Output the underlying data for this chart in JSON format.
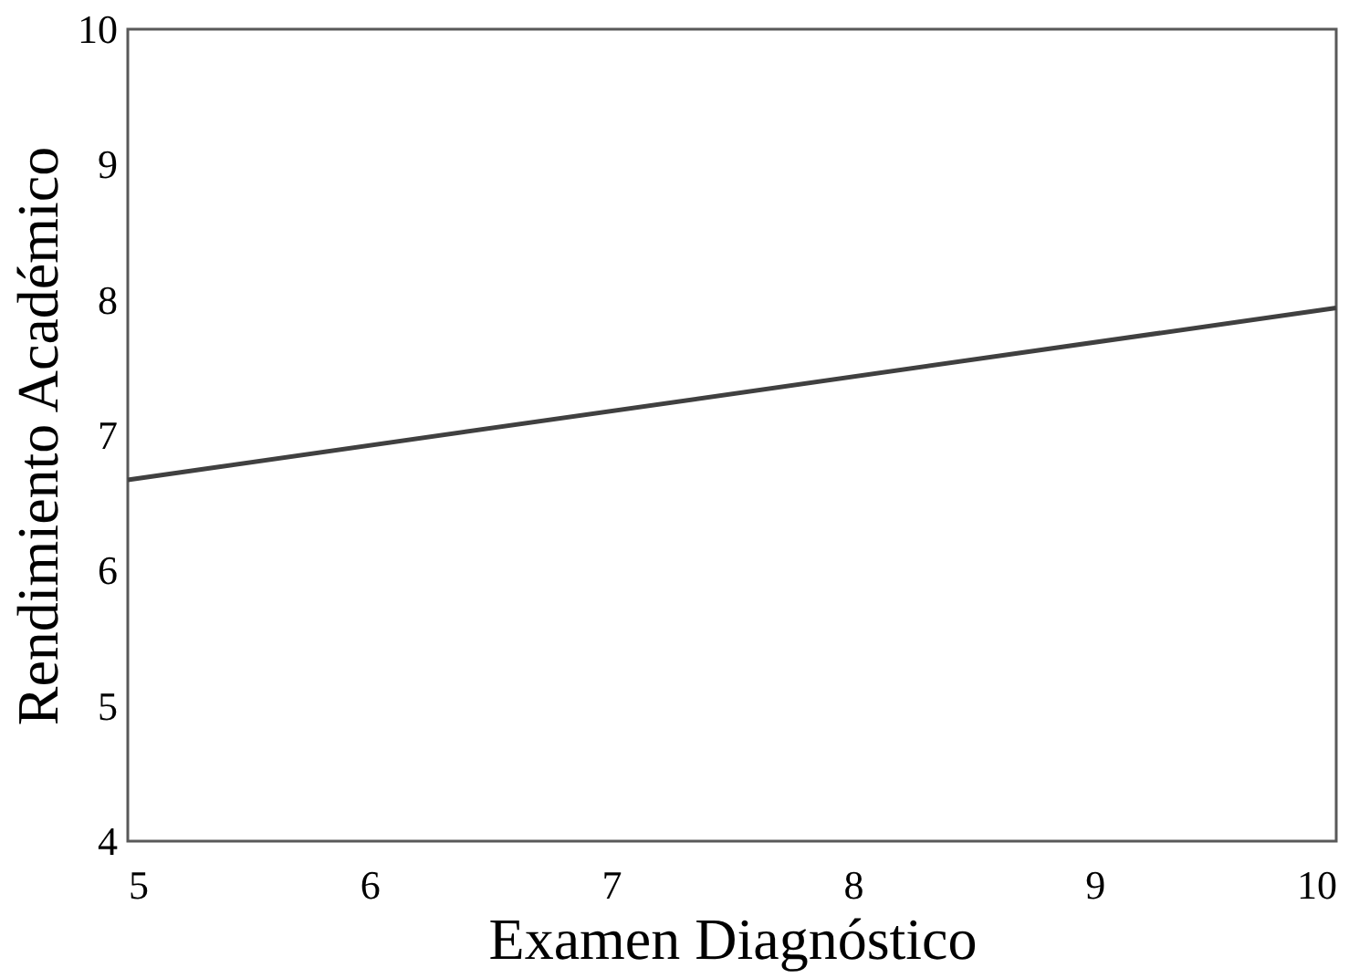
{
  "chart_data": {
    "type": "line",
    "xlabel": "Examen Diagnóstico",
    "ylabel": "Rendimiento Académico",
    "x": [
      5,
      10
    ],
    "series": [
      {
        "color": "#404040",
        "values": [
          6.67,
          7.94
        ]
      }
    ],
    "xlim": [
      5,
      10
    ],
    "xticks": [
      5,
      6,
      7,
      8,
      9,
      10
    ],
    "ylim": [
      4,
      10
    ],
    "yticks": [
      4,
      5,
      6,
      7,
      8,
      9,
      10
    ],
    "grid": false,
    "legend": false,
    "marker": "none",
    "line_style": "solid"
  }
}
